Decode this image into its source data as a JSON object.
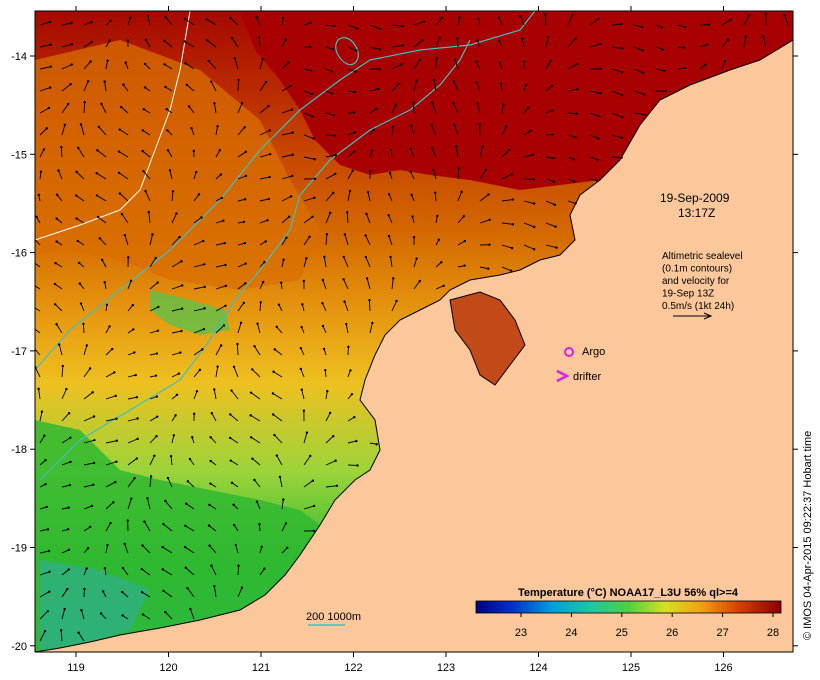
{
  "map": {
    "date_line1": "19-Sep-2009",
    "date_line2": "13:17Z",
    "legend_altimetry": [
      "Altimetric sealevel",
      "(0.1m contours)",
      "and velocity for",
      "19-Sep 13Z",
      "0.5m/s (1kt 24h)"
    ],
    "argo_label": "Argo",
    "drifter_label": "drifter",
    "isobath_label": "200  1000m",
    "colorbar_title": "Temperature (°C) NOAA17_L3U 56% ql>=4",
    "colorbar_ticks": [
      "23",
      "24",
      "25",
      "26",
      "27",
      "28"
    ],
    "x_ticks": [
      "119",
      "120",
      "121",
      "122",
      "123",
      "124",
      "125",
      "126"
    ],
    "y_ticks": [
      "-14",
      "-15",
      "-16",
      "-17",
      "-18",
      "-19",
      "-20"
    ],
    "credit": "© IMOS 04-Apr-2015 09:22:37 Hobart time",
    "colors": {
      "land": "#fbc79b",
      "warm_sea": "#a60000",
      "mid_sea": "#d97706",
      "cool_sea": "#2fb82f",
      "contour": "#3fc0c0",
      "marker": "#e020e0"
    }
  }
}
